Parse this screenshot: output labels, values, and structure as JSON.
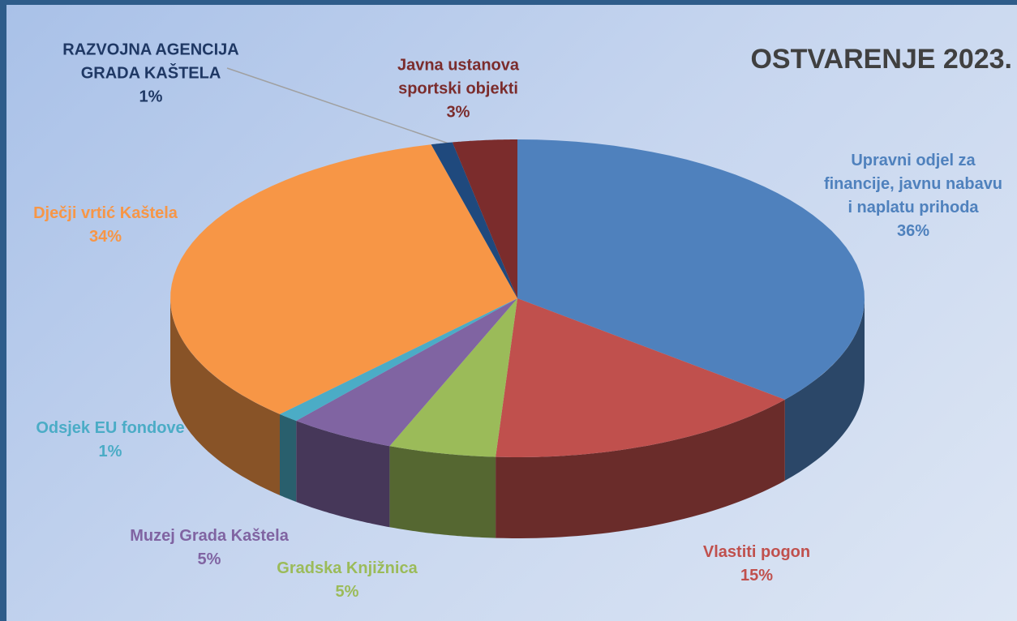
{
  "chart_data": {
    "type": "pie",
    "title": "OSTVARENJE 2023.",
    "categories": [
      "Upravni odjel za financije, javnu nabavu i naplatu prihoda",
      "Vlastiti pogon",
      "Gradska Knjižnica",
      "Muzej Grada Kaštela",
      "Odsjek  EU fondove",
      "Dječji vrtić Kaštela",
      "RAZVOJNA AGENCIJA GRADA KAŠTELA",
      "Javna ustanova sportski objekti"
    ],
    "values": [
      36,
      15,
      5,
      5,
      1,
      34,
      1,
      3
    ],
    "value_labels": [
      "36%",
      "15%",
      "5%",
      "5%",
      "1%",
      "34%",
      "1%",
      "3%"
    ],
    "colors": [
      "#4f81bd",
      "#c0504d",
      "#9bbb59",
      "#8064a2",
      "#4bacc6",
      "#f79646",
      "#1f497d",
      "#7b2c2c"
    ],
    "label_colors": [
      "#4f81bd",
      "#c0504d",
      "#9bbb59",
      "#8064a2",
      "#4bacc6",
      "#f79646",
      "#1f3864",
      "#7b2c2c"
    ]
  }
}
